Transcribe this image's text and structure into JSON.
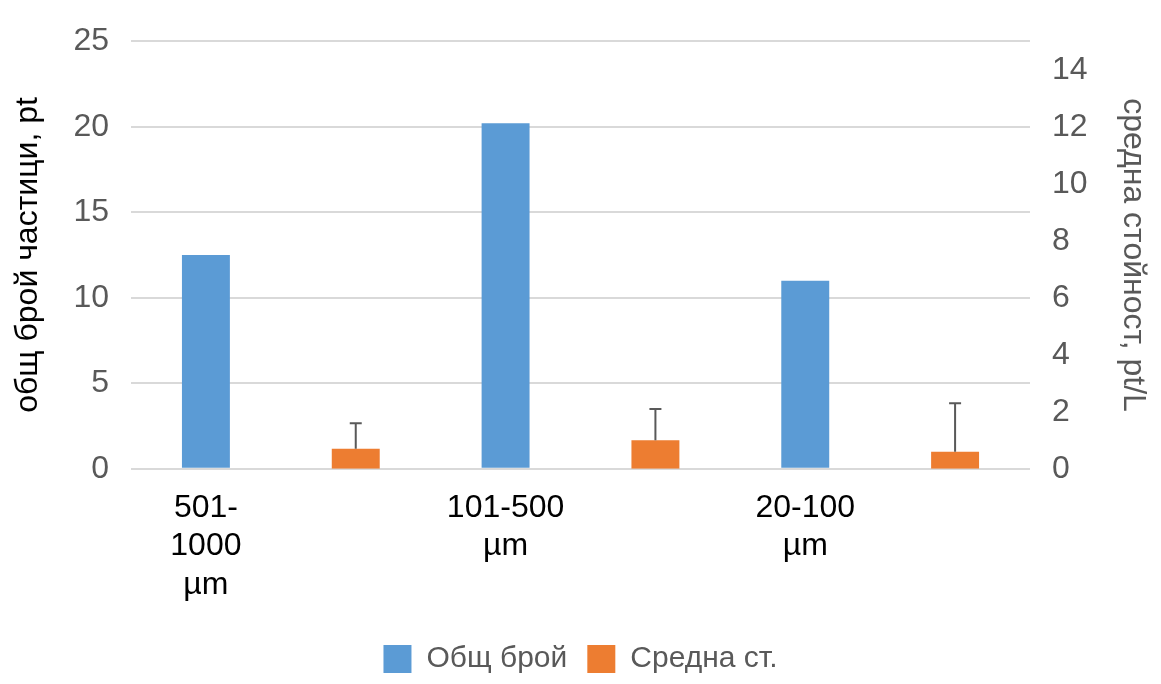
{
  "chart_data": {
    "type": "bar",
    "categories": [
      "501-1000 µm",
      null,
      "101-500 µm",
      null,
      "20-100 µm",
      null
    ],
    "series": [
      {
        "name": "Общ брой",
        "color": "#5b9bd5",
        "values": [
          12.5,
          null,
          20.2,
          null,
          11,
          null
        ]
      },
      {
        "name": "Средна ст.",
        "color": "#ed7d31",
        "axis": "y2",
        "values": [
          null,
          0.7,
          null,
          1.0,
          null,
          0.6
        ],
        "errors": [
          null,
          [
            0.7,
            1.6
          ],
          null,
          [
            1.0,
            2.1
          ],
          null,
          [
            0.6,
            2.3
          ]
        ]
      }
    ],
    "ylabel": "общ брой частици, pt",
    "y2label": "средна стойност, pt/L",
    "ylim": [
      0,
      25
    ],
    "yticks": [
      0,
      5,
      10,
      15,
      20,
      25
    ],
    "y2lim": [
      0,
      15
    ],
    "y2ticks": [
      0,
      2,
      4,
      6,
      8,
      10,
      12,
      14
    ],
    "grid": "y",
    "legend": "bottom"
  }
}
